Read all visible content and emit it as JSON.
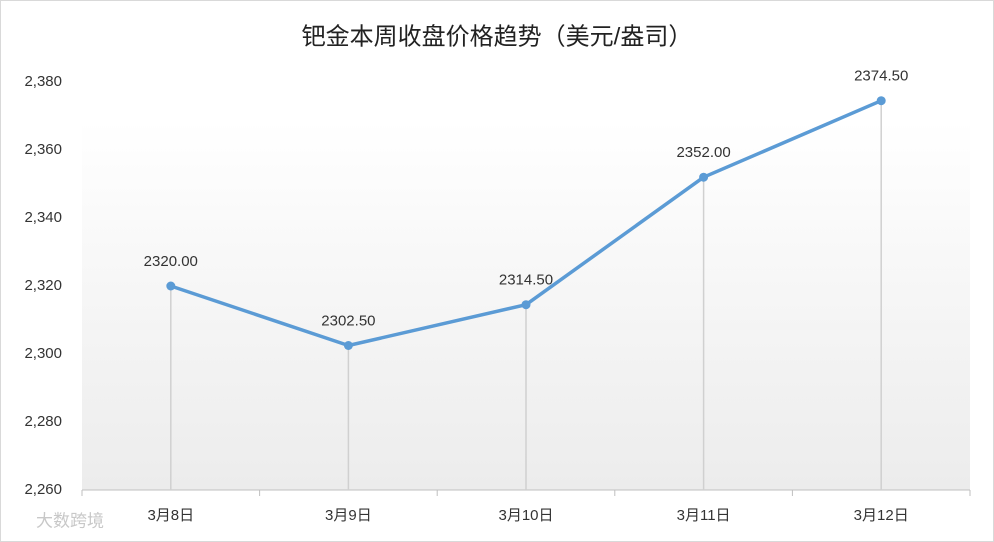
{
  "chart_data": {
    "type": "line",
    "title": "钯金本周收盘价格趋势（美元/盎司）",
    "categories": [
      "3月8日",
      "3月9日",
      "3月10日",
      "3月11日",
      "3月12日"
    ],
    "series": [
      {
        "color": "#5b9bd5",
        "values": [
          2320,
          2302.5,
          2314.5,
          2352,
          2374.5
        ],
        "value_labels": [
          "2320.00",
          "2302.50",
          "2314.50",
          "2352.00",
          "2374.50"
        ]
      }
    ],
    "ylim": [
      2260,
      2380
    ],
    "yticks": [
      {
        "value": 2260,
        "label": "2,260"
      },
      {
        "value": 2280,
        "label": "2,280"
      },
      {
        "value": 2300,
        "label": "2,300"
      },
      {
        "value": 2320,
        "label": "2,320"
      },
      {
        "value": 2340,
        "label": "2,340"
      },
      {
        "value": 2360,
        "label": "2,360"
      },
      {
        "value": 2380,
        "label": "2,380"
      }
    ],
    "watermark": "大数跨境"
  }
}
